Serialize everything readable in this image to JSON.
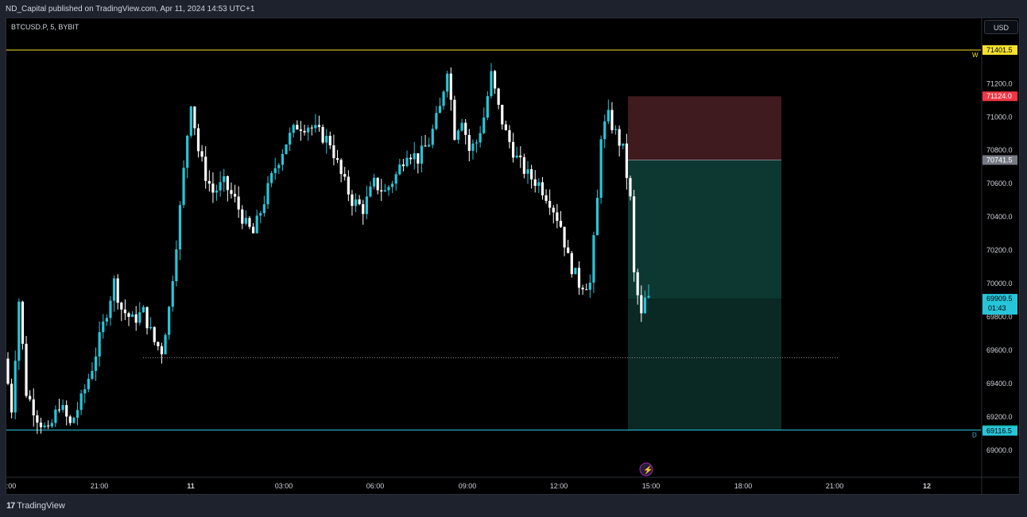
{
  "header": {
    "published_text": "ND_Capital published on TradingView.com, Apr 11, 2024 14:53 UTC+1"
  },
  "symbol": {
    "title": "BTCUSD.P, 5, BYBIT"
  },
  "currency_button": {
    "label": "USD"
  },
  "footer": {
    "brand_label": "TradingView"
  },
  "colors": {
    "up": "#26c6da",
    "down": "#ffffff",
    "background": "#000000",
    "weekly_line": "#f5e12c",
    "daily_line": "#26c6da",
    "stop_zone": "#4a1f25",
    "target_zone": "#0e3b35",
    "target_zone_dark": "#0b2a26"
  },
  "chart_data": {
    "type": "candlestick",
    "symbol": "BTCUSD.P",
    "interval": "5",
    "exchange": "BYBIT",
    "y_ticks": [
      "71200.0",
      "71000.0",
      "70800.0",
      "70600.0",
      "70400.0",
      "70200.0",
      "70000.0",
      "69800.0",
      "69600.0",
      "69400.0",
      "69200.0",
      "69000.0"
    ],
    "y_tick_values": [
      71200,
      71000,
      70800,
      70600,
      70400,
      70200,
      70000,
      69800,
      69600,
      69400,
      69200,
      69000
    ],
    "ylim": [
      68925,
      71480
    ],
    "x_ticks": [
      ":00",
      "21:00",
      "11",
      "03:00",
      "06:00",
      "09:00",
      "12:00",
      "15:00",
      "18:00",
      "21:00",
      "12"
    ],
    "bold_x_ticks": [
      "11",
      "12"
    ],
    "horizontal_levels": [
      {
        "label": "W",
        "value": 71401.5
      },
      {
        "label": "D",
        "value": 69121.5
      }
    ],
    "price_labels": [
      {
        "text": "71401.5",
        "value": 71401.5,
        "bg": "#f5e12c",
        "fg": "#000000"
      },
      {
        "text": "71124.0",
        "value": 71124.0,
        "bg": "#f23645",
        "fg": "#ffffff"
      },
      {
        "text": "70741.5",
        "value": 70741.5,
        "bg": "#787b86",
        "fg": "#ffffff"
      },
      {
        "text": "69909.5",
        "subtext": "01:43",
        "value": 69909.5,
        "bg": "#26c6da",
        "fg": "#000000"
      },
      {
        "text": "69121.5",
        "value": 69121.5,
        "bg": "#089981",
        "fg": "#ffffff"
      },
      {
        "text": "69116.5",
        "value": 69116.5,
        "bg": "#26c6da",
        "fg": "#000000"
      }
    ],
    "position": {
      "type": "short",
      "entry": 70741.5,
      "stop": 71124.0,
      "target": 69121.5,
      "current": 69909.5
    },
    "dotted_level": 69555,
    "anchors": [
      [
        0,
        69550
      ],
      [
        2,
        69250
      ],
      [
        4,
        69900
      ],
      [
        6,
        69350
      ],
      [
        9,
        69200
      ],
      [
        12,
        69100
      ],
      [
        15,
        69280
      ],
      [
        18,
        69150
      ],
      [
        21,
        69300
      ],
      [
        24,
        69500
      ],
      [
        27,
        69750
      ],
      [
        30,
        70010
      ],
      [
        32,
        69850
      ],
      [
        35,
        69780
      ],
      [
        38,
        69830
      ],
      [
        41,
        69650
      ],
      [
        43,
        69600
      ],
      [
        45,
        69850
      ],
      [
        46,
        70050
      ],
      [
        48,
        70450
      ],
      [
        50,
        70900
      ],
      [
        51,
        71100
      ],
      [
        53,
        70800
      ],
      [
        55,
        70650
      ],
      [
        57,
        70550
      ],
      [
        60,
        70600
      ],
      [
        63,
        70500
      ],
      [
        66,
        70350
      ],
      [
        68,
        70300
      ],
      [
        71,
        70500
      ],
      [
        74,
        70700
      ],
      [
        77,
        70850
      ],
      [
        80,
        70950
      ],
      [
        83,
        70950
      ],
      [
        86,
        70900
      ],
      [
        89,
        70850
      ],
      [
        92,
        70650
      ],
      [
        95,
        70500
      ],
      [
        98,
        70450
      ],
      [
        101,
        70600
      ],
      [
        104,
        70550
      ],
      [
        107,
        70650
      ],
      [
        110,
        70800
      ],
      [
        113,
        70750
      ],
      [
        116,
        70850
      ],
      [
        119,
        71050
      ],
      [
        121,
        71300
      ],
      [
        123,
        70900
      ],
      [
        125,
        71000
      ],
      [
        127,
        70800
      ],
      [
        129,
        70850
      ],
      [
        131,
        71000
      ],
      [
        133,
        71250
      ],
      [
        135,
        71050
      ],
      [
        137,
        70900
      ],
      [
        140,
        70750
      ],
      [
        143,
        70650
      ],
      [
        146,
        70600
      ],
      [
        149,
        70500
      ],
      [
        152,
        70350
      ],
      [
        154,
        70150
      ],
      [
        157,
        70000
      ],
      [
        160,
        70000
      ],
      [
        162,
        70500
      ],
      [
        163,
        70900
      ],
      [
        165,
        71000
      ],
      [
        167,
        70900
      ],
      [
        169,
        70800
      ],
      [
        171,
        70500
      ],
      [
        172,
        70050
      ],
      [
        174,
        69800
      ],
      [
        175,
        69900
      ]
    ],
    "candle_count": 176
  }
}
